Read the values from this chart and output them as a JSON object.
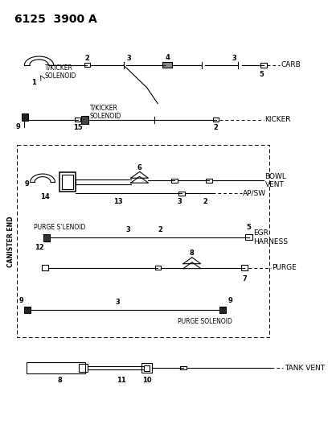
{
  "title": "6125  3900 A",
  "bg_color": "#ffffff",
  "lc": "#000000",
  "labels": {
    "carb": "CARB",
    "kicker": "KICKER",
    "bowl_vent": "BOWL\nVENT",
    "ap_sw": "AP/SW",
    "egr_harness": "EGR\nHARNESS",
    "purge": "PURGE",
    "tank_vent": "TANK VENT",
    "canister_end": "CANISTER END",
    "t_kicker_solenoid1": "T/KICKER\nSOLENOID",
    "t_kicker_solenoid2": "T/KICKER\nSOLENOID",
    "purge_solenoid1": "PURGE S’LENOID",
    "purge_solenoid2": "PURGE SOLENOID"
  },
  "figsize": [
    4.08,
    5.33
  ],
  "dpi": 100
}
